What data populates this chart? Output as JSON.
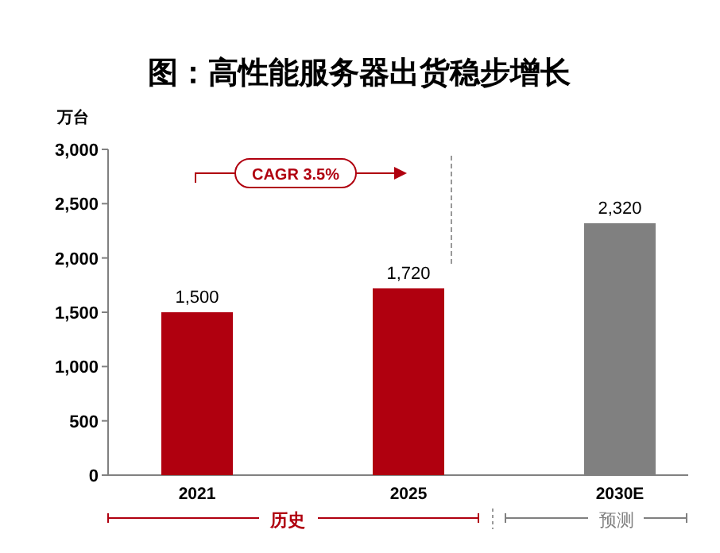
{
  "chart_data": {
    "type": "bar",
    "title": "图：高性能服务器出货稳步增长",
    "ylabel": "万台",
    "categories": [
      "2021",
      "2025",
      "2030E"
    ],
    "values": [
      1500,
      1720,
      2320
    ],
    "colors": [
      "#b0000f",
      "#b0000f",
      "#808080"
    ],
    "ylim": [
      0,
      3000
    ],
    "yticks": [
      {
        "value": 0,
        "label": "0"
      },
      {
        "value": 500,
        "label": "500"
      },
      {
        "value": 1000,
        "label": "1,000"
      },
      {
        "value": 1500,
        "label": "1,500"
      },
      {
        "value": 2000,
        "label": "2,000"
      },
      {
        "value": 2500,
        "label": "2,500"
      },
      {
        "value": 3000,
        "label": "3,000"
      }
    ],
    "value_labels": [
      "1,500",
      "1,720",
      "2,320"
    ],
    "annotations": [
      "CAGR 3.5%",
      "历史",
      "预测"
    ],
    "data_labels": false
  }
}
